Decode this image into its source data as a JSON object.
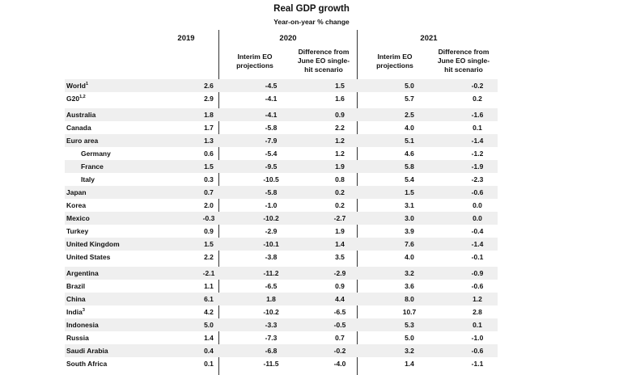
{
  "title": "Real GDP growth",
  "subtitle": "Year-on-year % change",
  "headers": {
    "y2019": "2019",
    "y2020": "2020",
    "y2021": "2021",
    "interim_2020": [
      "Interim EO",
      "projections"
    ],
    "diff_2020": [
      "Difference from",
      "June EO single-",
      "hit scenario"
    ],
    "interim_2021": [
      "Interim EO",
      "projections"
    ],
    "diff_2021": [
      "Difference from",
      "June EO single-",
      "hit scenario"
    ]
  },
  "rows": [
    {
      "label": "World",
      "sup": "1",
      "indent": false,
      "v2019": "2.6",
      "i2020": "-4.5",
      "d2020": "1.5",
      "i2021": "5.0",
      "d2021": "-0.2"
    },
    {
      "label": "G20",
      "sup": "1,2",
      "indent": false,
      "v2019": "2.9",
      "i2020": "-4.1",
      "d2020": "1.6",
      "i2021": "5.7",
      "d2021": "0.2"
    },
    {
      "label": "Australia",
      "sup": "",
      "indent": false,
      "v2019": "1.8",
      "i2020": "-4.1",
      "d2020": "0.9",
      "i2021": "2.5",
      "d2021": "-1.6"
    },
    {
      "label": "Canada",
      "sup": "",
      "indent": false,
      "v2019": "1.7",
      "i2020": "-5.8",
      "d2020": "2.2",
      "i2021": "4.0",
      "d2021": "0.1"
    },
    {
      "label": "Euro area",
      "sup": "",
      "indent": false,
      "v2019": "1.3",
      "i2020": "-7.9",
      "d2020": "1.2",
      "i2021": "5.1",
      "d2021": "-1.4"
    },
    {
      "label": "Germany",
      "sup": "",
      "indent": true,
      "v2019": "0.6",
      "i2020": "-5.4",
      "d2020": "1.2",
      "i2021": "4.6",
      "d2021": "-1.2"
    },
    {
      "label": "France",
      "sup": "",
      "indent": true,
      "v2019": "1.5",
      "i2020": "-9.5",
      "d2020": "1.9",
      "i2021": "5.8",
      "d2021": "-1.9"
    },
    {
      "label": "Italy",
      "sup": "",
      "indent": true,
      "v2019": "0.3",
      "i2020": "-10.5",
      "d2020": "0.8",
      "i2021": "5.4",
      "d2021": "-2.3"
    },
    {
      "label": "Japan",
      "sup": "",
      "indent": false,
      "v2019": "0.7",
      "i2020": "-5.8",
      "d2020": "0.2",
      "i2021": "1.5",
      "d2021": "-0.6"
    },
    {
      "label": "Korea",
      "sup": "",
      "indent": false,
      "v2019": "2.0",
      "i2020": "-1.0",
      "d2020": "0.2",
      "i2021": "3.1",
      "d2021": "0.0"
    },
    {
      "label": "Mexico",
      "sup": "",
      "indent": false,
      "v2019": "-0.3",
      "i2020": "-10.2",
      "d2020": "-2.7",
      "i2021": "3.0",
      "d2021": "0.0"
    },
    {
      "label": "Turkey",
      "sup": "",
      "indent": false,
      "v2019": "0.9",
      "i2020": "-2.9",
      "d2020": "1.9",
      "i2021": "3.9",
      "d2021": "-0.4"
    },
    {
      "label": "United Kingdom",
      "sup": "",
      "indent": false,
      "v2019": "1.5",
      "i2020": "-10.1",
      "d2020": "1.4",
      "i2021": "7.6",
      "d2021": "-1.4"
    },
    {
      "label": "United States",
      "sup": "",
      "indent": false,
      "v2019": "2.2",
      "i2020": "-3.8",
      "d2020": "3.5",
      "i2021": "4.0",
      "d2021": "-0.1"
    },
    {
      "label": "Argentina",
      "sup": "",
      "indent": false,
      "v2019": "-2.1",
      "i2020": "-11.2",
      "d2020": "-2.9",
      "i2021": "3.2",
      "d2021": "-0.9"
    },
    {
      "label": "Brazil",
      "sup": "",
      "indent": false,
      "v2019": "1.1",
      "i2020": "-6.5",
      "d2020": "0.9",
      "i2021": "3.6",
      "d2021": "-0.6"
    },
    {
      "label": "China",
      "sup": "",
      "indent": false,
      "v2019": "6.1",
      "i2020": "1.8",
      "d2020": "4.4",
      "i2021": "8.0",
      "d2021": "1.2"
    },
    {
      "label": "India",
      "sup": "3",
      "indent": false,
      "v2019": "4.2",
      "i2020": "-10.2",
      "d2020": "-6.5",
      "i2021": "10.7",
      "d2021": "2.8"
    },
    {
      "label": "Indonesia",
      "sup": "",
      "indent": false,
      "v2019": "5.0",
      "i2020": "-3.3",
      "d2020": "-0.5",
      "i2021": "5.3",
      "d2021": "0.1"
    },
    {
      "label": "Russia",
      "sup": "",
      "indent": false,
      "v2019": "1.4",
      "i2020": "-7.3",
      "d2020": "0.7",
      "i2021": "5.0",
      "d2021": "-1.0"
    },
    {
      "label": "Saudi Arabia",
      "sup": "",
      "indent": false,
      "v2019": "0.4",
      "i2020": "-6.8",
      "d2020": "-0.2",
      "i2021": "3.2",
      "d2021": "-0.6"
    },
    {
      "label": "South Africa",
      "sup": "",
      "indent": false,
      "v2019": "0.1",
      "i2020": "-11.5",
      "d2020": "-4.0",
      "i2021": "1.4",
      "d2021": "-1.1"
    }
  ],
  "colors": {
    "shade": "#efefef",
    "rule": "#333333",
    "text": "#111111"
  }
}
